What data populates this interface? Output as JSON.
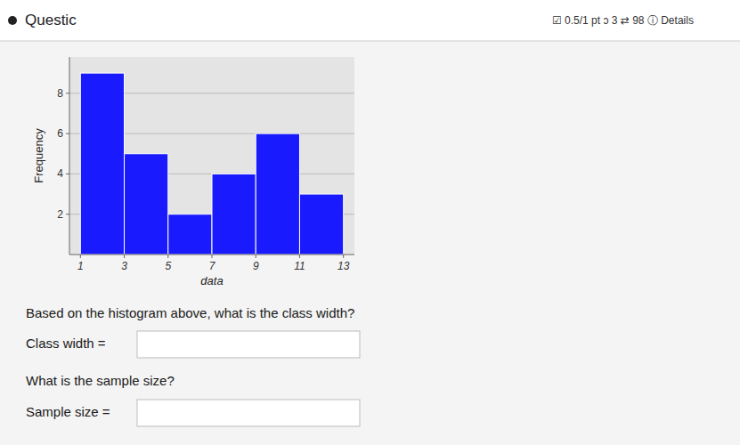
{
  "chart_data": {
    "type": "histogram",
    "xlabel": "data",
    "ylabel": "Frequency",
    "bins": [
      1,
      3,
      5,
      7,
      9,
      11,
      13
    ],
    "values": [
      9,
      5,
      2,
      4,
      6,
      3
    ],
    "color": "#1a1aff",
    "xlim": [
      0.5,
      13.5
    ],
    "ylim": [
      0,
      9.8
    ],
    "xticks": [
      1,
      3,
      5,
      7,
      9,
      11,
      13
    ],
    "yticks": [
      2,
      4,
      6,
      8
    ],
    "grid": true,
    "annotations": [
      "Questic",
      "☑ 0.5/1 pt ɔ 3 ⇄ 98 ⓘ Details",
      "Based on the histogram above, what is the class width?",
      "Class width =",
      "What is the sample size?",
      "Sample size ="
    ]
  }
}
